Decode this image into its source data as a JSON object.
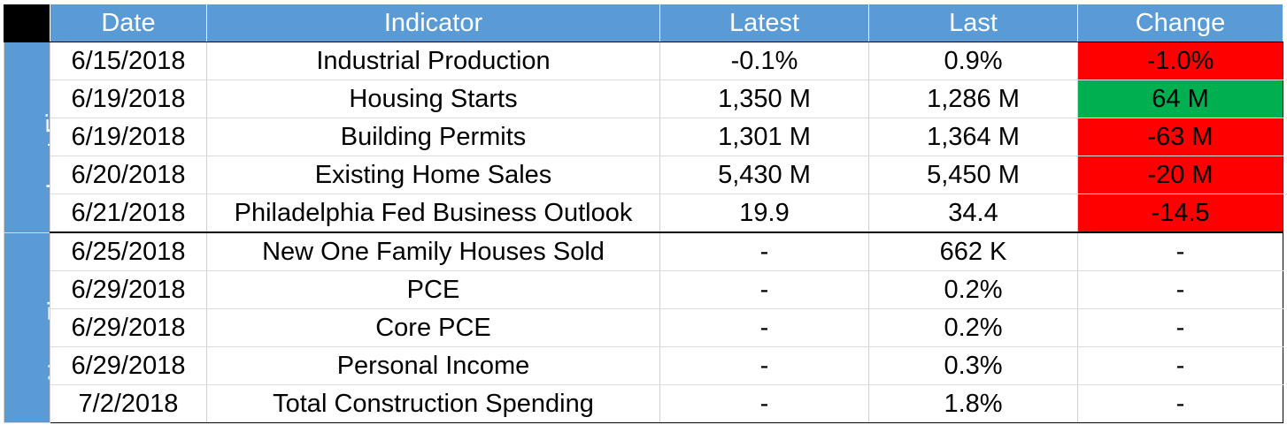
{
  "table": {
    "headers": [
      "Date",
      "Indicator",
      "Latest",
      "Last",
      "Change"
    ],
    "groups": [
      {
        "label": "Last Five",
        "rows": [
          {
            "date": "6/15/2018",
            "indicator": "Industrial Production",
            "latest": "-0.1%",
            "last": "0.9%",
            "change": "-1.0%",
            "change_status": "negative"
          },
          {
            "date": "6/19/2018",
            "indicator": "Housing Starts",
            "latest": "1,350 M",
            "last": "1,286 M",
            "change": "64 M",
            "change_status": "positive"
          },
          {
            "date": "6/19/2018",
            "indicator": "Building Permits",
            "latest": "1,301 M",
            "last": "1,364 M",
            "change": "-63 M",
            "change_status": "negative"
          },
          {
            "date": "6/20/2018",
            "indicator": "Existing Home Sales",
            "latest": "5,430 M",
            "last": "5,450 M",
            "change": "-20 M",
            "change_status": "negative"
          },
          {
            "date": "6/21/2018",
            "indicator": "Philadelphia Fed Business Outlook",
            "latest": "19.9",
            "last": "34.4",
            "change": "-14.5",
            "change_status": "negative"
          }
        ]
      },
      {
        "label": "Next Five",
        "rows": [
          {
            "date": "6/25/2018",
            "indicator": "New One Family Houses Sold",
            "latest": "-",
            "last": "662 K",
            "change": "-",
            "change_status": "none"
          },
          {
            "date": "6/29/2018",
            "indicator": "PCE",
            "latest": "-",
            "last": "0.2%",
            "change": "-",
            "change_status": "none"
          },
          {
            "date": "6/29/2018",
            "indicator": "Core PCE",
            "latest": "-",
            "last": "0.2%",
            "change": "-",
            "change_status": "none"
          },
          {
            "date": "6/29/2018",
            "indicator": "Personal Income",
            "latest": "-",
            "last": "0.3%",
            "change": "-",
            "change_status": "none"
          },
          {
            "date": "7/2/2018",
            "indicator": "Total Construction Spending",
            "latest": "-",
            "last": "1.8%",
            "change": "-",
            "change_status": "none"
          }
        ]
      }
    ]
  },
  "colors": {
    "header_bg": "#5b9bd5",
    "negative": "#ff0000",
    "positive": "#00b050"
  }
}
